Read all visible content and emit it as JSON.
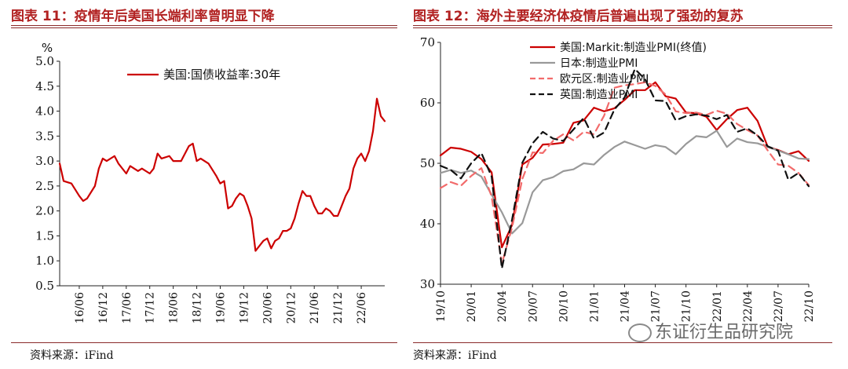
{
  "left": {
    "title": "图表 11：疫情年后美国长端利率曾明显下降",
    "source": "资料来源：iFind"
  },
  "right": {
    "title": "图表 12：海外主要经济体疫情后普遍出现了强劲的复苏",
    "source": "资料来源：iFind"
  },
  "watermark": "东证衍生品研究院",
  "colors": {
    "title": "#b22222",
    "us": "#cc0000",
    "jp": "#999999",
    "eu": "#f26b6b",
    "uk": "#111111"
  },
  "chart_data": [
    {
      "type": "line",
      "ylabel": "%",
      "ylim": [
        0.5,
        5.0
      ],
      "yticks": [
        "0.5",
        "1.0",
        "1.5",
        "2.0",
        "2.5",
        "3.0",
        "3.5",
        "4.0",
        "4.5",
        "5.0"
      ],
      "xticks": [
        "16/06",
        "16/12",
        "17/06",
        "17/12",
        "18/06",
        "18/12",
        "19/06",
        "19/12",
        "20/06",
        "20/12",
        "21/06",
        "21/12",
        "22/06"
      ],
      "legend_placement": "top",
      "series": [
        {
          "name": "美国:国债收益率:30年",
          "color": "#cc0000",
          "points": [
            [
              "16/01",
              2.95
            ],
            [
              "16/02",
              2.6
            ],
            [
              "16/04",
              2.55
            ],
            [
              "16/06",
              2.3
            ],
            [
              "16/07",
              2.2
            ],
            [
              "16/08",
              2.25
            ],
            [
              "16/10",
              2.5
            ],
            [
              "16/11",
              2.85
            ],
            [
              "16/12",
              3.05
            ],
            [
              "17/01",
              3.0
            ],
            [
              "17/03",
              3.1
            ],
            [
              "17/04",
              2.95
            ],
            [
              "17/06",
              2.75
            ],
            [
              "17/07",
              2.9
            ],
            [
              "17/09",
              2.8
            ],
            [
              "17/10",
              2.85
            ],
            [
              "17/12",
              2.75
            ],
            [
              "18/01",
              2.85
            ],
            [
              "18/02",
              3.15
            ],
            [
              "18/03",
              3.05
            ],
            [
              "18/05",
              3.1
            ],
            [
              "18/06",
              3.0
            ],
            [
              "18/08",
              3.0
            ],
            [
              "18/10",
              3.3
            ],
            [
              "18/11",
              3.35
            ],
            [
              "18/12",
              3.0
            ],
            [
              "19/01",
              3.05
            ],
            [
              "19/03",
              2.95
            ],
            [
              "19/05",
              2.7
            ],
            [
              "19/06",
              2.55
            ],
            [
              "19/07",
              2.6
            ],
            [
              "19/08",
              2.05
            ],
            [
              "19/09",
              2.1
            ],
            [
              "19/10",
              2.25
            ],
            [
              "19/11",
              2.35
            ],
            [
              "19/12",
              2.3
            ],
            [
              "20/01",
              2.1
            ],
            [
              "20/02",
              1.85
            ],
            [
              "20/03",
              1.2
            ],
            [
              "20/04",
              1.3
            ],
            [
              "20/05",
              1.4
            ],
            [
              "20/06",
              1.45
            ],
            [
              "20/07",
              1.25
            ],
            [
              "20/08",
              1.4
            ],
            [
              "20/09",
              1.45
            ],
            [
              "20/10",
              1.6
            ],
            [
              "20/11",
              1.6
            ],
            [
              "20/12",
              1.65
            ],
            [
              "21/01",
              1.85
            ],
            [
              "21/02",
              2.15
            ],
            [
              "21/03",
              2.4
            ],
            [
              "21/04",
              2.3
            ],
            [
              "21/05",
              2.3
            ],
            [
              "21/06",
              2.1
            ],
            [
              "21/07",
              1.95
            ],
            [
              "21/08",
              1.95
            ],
            [
              "21/09",
              2.05
            ],
            [
              "21/10",
              2.0
            ],
            [
              "21/11",
              1.9
            ],
            [
              "21/12",
              1.9
            ],
            [
              "22/01",
              2.1
            ],
            [
              "22/02",
              2.3
            ],
            [
              "22/03",
              2.45
            ],
            [
              "22/04",
              2.85
            ],
            [
              "22/05",
              3.05
            ],
            [
              "22/06",
              3.15
            ],
            [
              "22/07",
              3.0
            ],
            [
              "22/08",
              3.2
            ],
            [
              "22/09",
              3.6
            ],
            [
              "22/10",
              4.25
            ],
            [
              "22/11",
              3.9
            ],
            [
              "22/12",
              3.8
            ]
          ]
        }
      ]
    },
    {
      "type": "line",
      "ylim": [
        30,
        70
      ],
      "yticks": [
        "30",
        "40",
        "50",
        "60",
        "70"
      ],
      "xticks": [
        "19/10",
        "20/01",
        "20/04",
        "20/07",
        "20/10",
        "21/01",
        "21/04",
        "21/07",
        "21/10",
        "22/01",
        "22/04",
        "22/07",
        "22/10"
      ],
      "legend_placement": "top-left",
      "series": [
        {
          "name": "美国:Markit:制造业PMI(终值)",
          "color": "#cc0000",
          "style": "solid",
          "points": [
            [
              "19/10",
              51.3
            ],
            [
              "19/11",
              52.6
            ],
            [
              "19/12",
              52.4
            ],
            [
              "20/01",
              51.9
            ],
            [
              "20/02",
              50.7
            ],
            [
              "20/03",
              48.5
            ],
            [
              "20/04",
              36.1
            ],
            [
              "20/05",
              39.8
            ],
            [
              "20/06",
              49.8
            ],
            [
              "20/07",
              50.9
            ],
            [
              "20/08",
              53.1
            ],
            [
              "20/09",
              53.2
            ],
            [
              "20/10",
              53.4
            ],
            [
              "20/11",
              56.7
            ],
            [
              "20/12",
              57.1
            ],
            [
              "21/01",
              59.2
            ],
            [
              "21/02",
              58.6
            ],
            [
              "21/03",
              59.1
            ],
            [
              "21/04",
              60.5
            ],
            [
              "21/05",
              62.1
            ],
            [
              "21/06",
              62.1
            ],
            [
              "21/07",
              63.4
            ],
            [
              "21/08",
              61.1
            ],
            [
              "21/09",
              60.7
            ],
            [
              "21/10",
              58.4
            ],
            [
              "21/11",
              58.3
            ],
            [
              "21/12",
              57.7
            ],
            [
              "22/01",
              55.5
            ],
            [
              "22/02",
              57.3
            ],
            [
              "22/03",
              58.8
            ],
            [
              "22/04",
              59.2
            ],
            [
              "22/05",
              57.0
            ],
            [
              "22/06",
              52.7
            ],
            [
              "22/07",
              52.2
            ],
            [
              "22/08",
              51.5
            ],
            [
              "22/09",
              52.0
            ],
            [
              "22/10",
              50.4
            ]
          ]
        },
        {
          "name": "日本:制造业PMI",
          "color": "#999999",
          "style": "solid",
          "points": [
            [
              "19/10",
              48.4
            ],
            [
              "19/11",
              48.9
            ],
            [
              "19/12",
              48.4
            ],
            [
              "20/01",
              48.8
            ],
            [
              "20/02",
              47.8
            ],
            [
              "20/03",
              44.8
            ],
            [
              "20/04",
              41.9
            ],
            [
              "20/05",
              38.4
            ],
            [
              "20/06",
              40.1
            ],
            [
              "20/07",
              45.2
            ],
            [
              "20/08",
              47.2
            ],
            [
              "20/09",
              47.7
            ],
            [
              "20/10",
              48.7
            ],
            [
              "20/11",
              49.0
            ],
            [
              "20/12",
              50.0
            ],
            [
              "21/01",
              49.8
            ],
            [
              "21/02",
              51.4
            ],
            [
              "21/03",
              52.7
            ],
            [
              "21/04",
              53.6
            ],
            [
              "21/05",
              53.0
            ],
            [
              "21/06",
              52.4
            ],
            [
              "21/07",
              53.0
            ],
            [
              "21/08",
              52.7
            ],
            [
              "21/09",
              51.5
            ],
            [
              "21/10",
              53.2
            ],
            [
              "21/11",
              54.5
            ],
            [
              "21/12",
              54.3
            ],
            [
              "22/01",
              55.4
            ],
            [
              "22/02",
              52.7
            ],
            [
              "22/03",
              54.1
            ],
            [
              "22/04",
              53.5
            ],
            [
              "22/05",
              53.3
            ],
            [
              "22/06",
              52.7
            ],
            [
              "22/07",
              52.1
            ],
            [
              "22/08",
              51.5
            ],
            [
              "22/09",
              50.8
            ],
            [
              "22/10",
              50.7
            ]
          ]
        },
        {
          "name": "欧元区:制造业PMI",
          "color": "#f26b6b",
          "style": "dashed",
          "points": [
            [
              "19/10",
              45.9
            ],
            [
              "19/11",
              46.9
            ],
            [
              "19/12",
              46.3
            ],
            [
              "20/01",
              47.9
            ],
            [
              "20/02",
              49.2
            ],
            [
              "20/03",
              44.5
            ],
            [
              "20/04",
              33.4
            ],
            [
              "20/05",
              39.4
            ],
            [
              "20/06",
              47.4
            ],
            [
              "20/07",
              51.8
            ],
            [
              "20/08",
              51.7
            ],
            [
              "20/09",
              53.7
            ],
            [
              "20/10",
              54.8
            ],
            [
              "20/11",
              53.8
            ],
            [
              "20/12",
              55.2
            ],
            [
              "21/01",
              54.8
            ],
            [
              "21/02",
              57.9
            ],
            [
              "21/03",
              62.5
            ],
            [
              "21/04",
              62.9
            ],
            [
              "21/05",
              63.1
            ],
            [
              "21/06",
              63.4
            ],
            [
              "21/07",
              62.8
            ],
            [
              "21/08",
              61.4
            ],
            [
              "21/09",
              58.6
            ],
            [
              "21/10",
              58.3
            ],
            [
              "21/11",
              58.4
            ],
            [
              "21/12",
              58.0
            ],
            [
              "22/01",
              58.7
            ],
            [
              "22/02",
              58.2
            ],
            [
              "22/03",
              56.5
            ],
            [
              "22/04",
              55.5
            ],
            [
              "22/05",
              54.6
            ],
            [
              "22/06",
              52.1
            ],
            [
              "22/07",
              49.8
            ],
            [
              "22/08",
              49.6
            ],
            [
              "22/09",
              48.4
            ],
            [
              "22/10",
              46.4
            ]
          ]
        },
        {
          "name": "英国:制造业PMI",
          "color": "#111111",
          "style": "dashed",
          "points": [
            [
              "19/10",
              49.6
            ],
            [
              "19/11",
              48.9
            ],
            [
              "19/12",
              47.5
            ],
            [
              "20/01",
              50.0
            ],
            [
              "20/02",
              51.7
            ],
            [
              "20/03",
              47.8
            ],
            [
              "20/04",
              32.6
            ],
            [
              "20/05",
              40.7
            ],
            [
              "20/06",
              50.1
            ],
            [
              "20/07",
              53.3
            ],
            [
              "20/08",
              55.2
            ],
            [
              "20/09",
              54.1
            ],
            [
              "20/10",
              53.7
            ],
            [
              "20/11",
              55.6
            ],
            [
              "20/12",
              57.5
            ],
            [
              "21/01",
              54.1
            ],
            [
              "21/02",
              55.1
            ],
            [
              "21/03",
              58.9
            ],
            [
              "21/04",
              60.9
            ],
            [
              "21/05",
              65.6
            ],
            [
              "21/06",
              63.9
            ],
            [
              "21/07",
              60.4
            ],
            [
              "21/08",
              60.3
            ],
            [
              "21/09",
              57.1
            ],
            [
              "21/10",
              57.8
            ],
            [
              "21/11",
              58.1
            ],
            [
              "21/12",
              57.9
            ],
            [
              "22/01",
              57.3
            ],
            [
              "22/02",
              58.0
            ],
            [
              "22/03",
              55.2
            ],
            [
              "22/04",
              55.8
            ],
            [
              "22/05",
              54.6
            ],
            [
              "22/06",
              52.8
            ],
            [
              "22/07",
              52.1
            ],
            [
              "22/08",
              47.3
            ],
            [
              "22/09",
              48.4
            ],
            [
              "22/10",
              46.2
            ]
          ]
        }
      ]
    }
  ]
}
